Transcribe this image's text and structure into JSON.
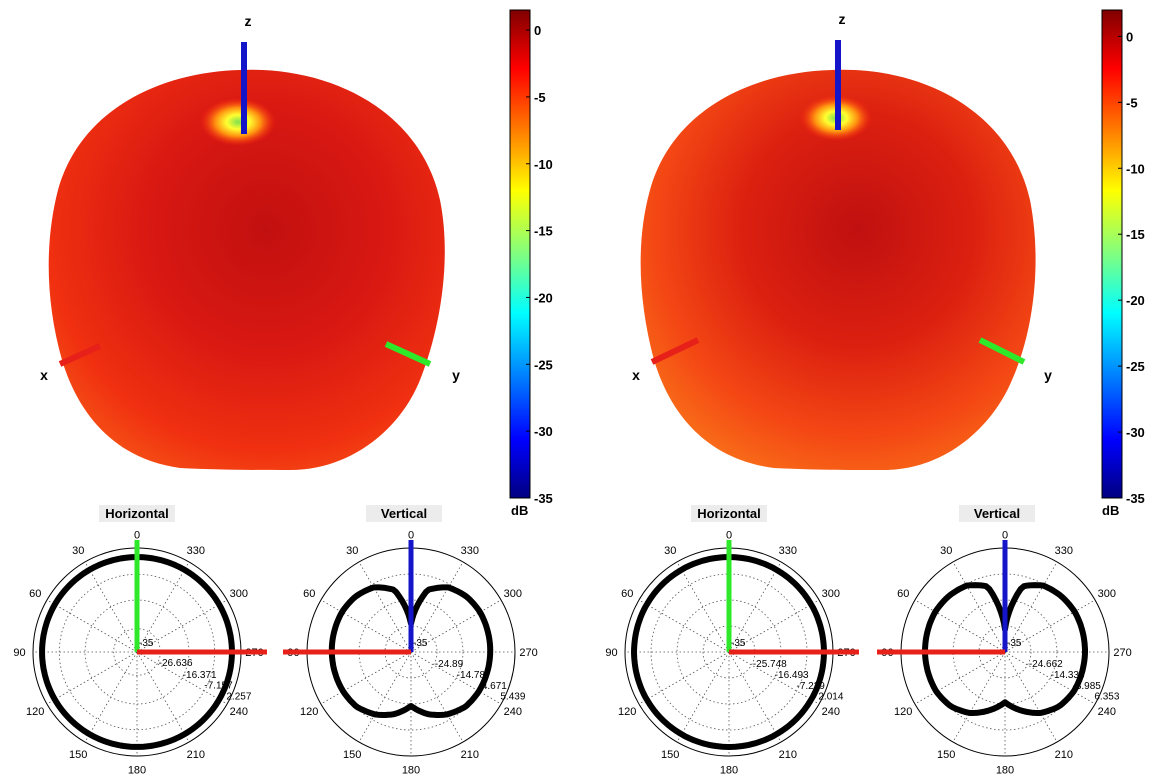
{
  "colors": {
    "x_axis": "#e8201a",
    "y_axis": "#2ee82a",
    "z_axis": "#1414c8",
    "pattern_trace": "#000000",
    "grid": "#555555",
    "colormap": [
      "#800000",
      "#ff0000",
      "#ff8000",
      "#ffff00",
      "#80ff80",
      "#00ffff",
      "#0080ff",
      "#0000ff",
      "#000080"
    ]
  },
  "chart_data": [
    {
      "type": "surface-3d",
      "axis_labels": {
        "x": "x",
        "y": "y",
        "z": "z"
      },
      "colorbar": {
        "ticks": [
          "0",
          "-5",
          "-10",
          "-15",
          "-20",
          "-25",
          "-30",
          "-35"
        ],
        "tick_values": [
          0,
          -5,
          -10,
          -15,
          -20,
          -25,
          -30,
          -35
        ],
        "range": [
          -35,
          1.5
        ],
        "unit": "dB"
      },
      "polar_plots": [
        {
          "type": "polar",
          "title": "Horizontal",
          "angle_ticks": [
            "0",
            "30",
            "60",
            "90",
            "120",
            "150",
            "180",
            "210",
            "240",
            "270",
            "300",
            "330"
          ],
          "radial_ticks": [
            "-35",
            "-26.636",
            "-16.371",
            "-7.157",
            "2.257"
          ],
          "radial_values": [
            -35,
            -26.636,
            -16.371,
            -7.157,
            2.257
          ],
          "angles_deg": [
            0,
            30,
            60,
            90,
            120,
            150,
            180,
            210,
            240,
            270,
            300,
            330
          ],
          "gain_dB": [
            -1,
            -1,
            -1,
            -1,
            -1,
            -1,
            -1,
            -1,
            -1,
            -1,
            -1,
            -1
          ]
        },
        {
          "type": "polar",
          "title": "Vertical",
          "angle_ticks": [
            "0",
            "30",
            "60",
            "90",
            "120",
            "150",
            "180",
            "210",
            "240",
            "270",
            "300",
            "330"
          ],
          "radial_ticks": [
            "-35",
            "-24.89",
            "-14.78",
            "-4.671",
            "5.439"
          ],
          "radial_values": [
            -35,
            -24.89,
            -14.78,
            -4.671,
            5.439
          ],
          "angles_deg": [
            0,
            15,
            30,
            45,
            60,
            90,
            120,
            135,
            150,
            165,
            180,
            195,
            210,
            225,
            240,
            270,
            300,
            315,
            330,
            345
          ],
          "gain_dB": [
            -24,
            -10,
            -6,
            -4.5,
            -4,
            -4.2,
            -4.5,
            -5,
            -7,
            -10,
            -14,
            -10,
            -7,
            -5,
            -4.5,
            -4.2,
            -4,
            -4.5,
            -6,
            -10
          ]
        }
      ]
    },
    {
      "type": "surface-3d",
      "axis_labels": {
        "x": "x",
        "y": "y",
        "z": "z"
      },
      "colorbar": {
        "ticks": [
          "0",
          "-5",
          "-10",
          "-15",
          "-20",
          "-25",
          "-30",
          "-35"
        ],
        "tick_values": [
          0,
          -5,
          -10,
          -15,
          -20,
          -25,
          -30,
          -35
        ],
        "range": [
          -35,
          2
        ],
        "unit": "dB"
      },
      "polar_plots": [
        {
          "type": "polar",
          "title": "Horizontal",
          "angle_ticks": [
            "0",
            "30",
            "60",
            "90",
            "120",
            "150",
            "180",
            "210",
            "240",
            "270",
            "300",
            "330"
          ],
          "radial_ticks": [
            "-35",
            "-25.748",
            "-16.493",
            "-7.239",
            "2.014"
          ],
          "radial_values": [
            -35,
            -25.748,
            -16.493,
            -7.239,
            2.014
          ],
          "angles_deg": [
            0,
            30,
            60,
            90,
            120,
            150,
            180,
            210,
            240,
            270,
            300,
            330
          ],
          "gain_dB": [
            -1.2,
            -1.2,
            -1.2,
            -1.2,
            -1.2,
            -1.2,
            -1.2,
            -1.2,
            -1.2,
            -1.2,
            -1.2,
            -1.2
          ]
        },
        {
          "type": "polar",
          "title": "Vertical",
          "angle_ticks": [
            "0",
            "30",
            "60",
            "90",
            "120",
            "150",
            "180",
            "210",
            "240",
            "270",
            "300",
            "330"
          ],
          "radial_ticks": [
            "-35",
            "-24.662",
            "-14.338",
            "-3.985",
            "6.353"
          ],
          "radial_values": [
            -35,
            -24.662,
            -14.338,
            -3.985,
            6.353
          ],
          "angles_deg": [
            0,
            15,
            30,
            45,
            60,
            90,
            120,
            135,
            150,
            165,
            180,
            195,
            210,
            225,
            240,
            270,
            300,
            315,
            330,
            345
          ],
          "gain_dB": [
            -26,
            -8,
            -4.5,
            -3.5,
            -3,
            -3.2,
            -3.5,
            -4.5,
            -7,
            -11,
            -15,
            -11,
            -7,
            -4.5,
            -3.5,
            -3.2,
            -3,
            -3.5,
            -4.5,
            -8
          ]
        }
      ]
    }
  ]
}
